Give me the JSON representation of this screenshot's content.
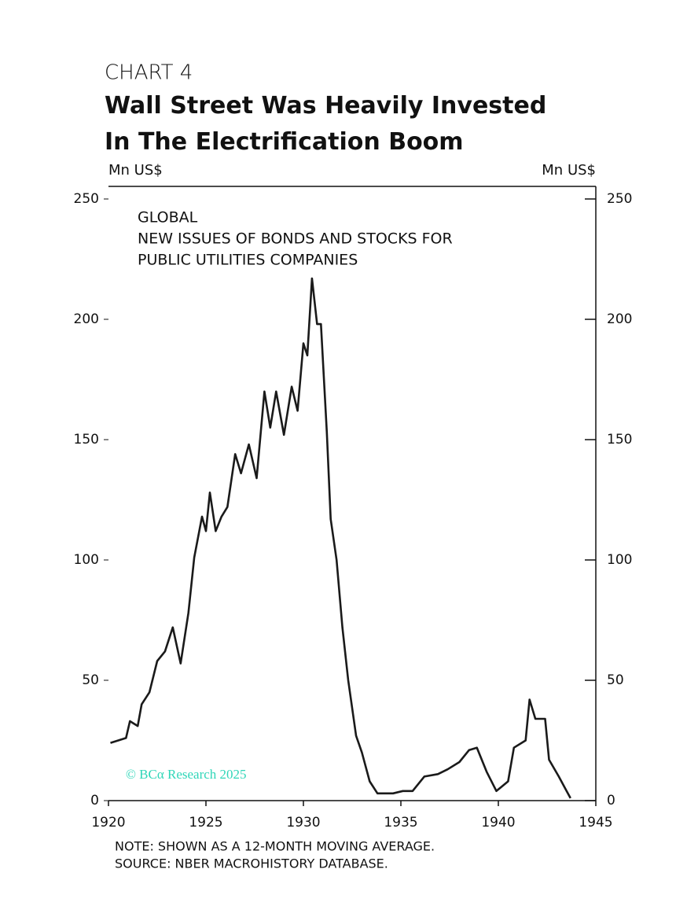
{
  "chart_data": {
    "type": "line",
    "kicker": "CHART 4",
    "title": "Wall Street Was Heavily Invested In The Electrification Boom",
    "ylabel": "Mn US$",
    "y2label": "Mn US$",
    "annotation": [
      "GLOBAL",
      "NEW ISSUES OF BONDS AND STOCKS FOR",
      "PUBLIC UTILITIES COMPANIES"
    ],
    "watermark": "© BCα Research 2025",
    "notes": [
      "NOTE: SHOWN AS A 12-MONTH MOVING AVERAGE.",
      "SOURCE: NBER MACROHISTORY DATABASE."
    ],
    "xlim": [
      1920,
      1945
    ],
    "xticks": [
      1920,
      1925,
      1930,
      1935,
      1940,
      1945
    ],
    "ylim": [
      0,
      250
    ],
    "yticks": [
      0,
      50,
      100,
      150,
      200,
      250
    ],
    "y2lim": [
      0,
      250
    ],
    "y2ticks": [
      0,
      50,
      100,
      150,
      200,
      250
    ],
    "series": [
      {
        "name": "New issues",
        "color": "#1a1a1a",
        "x": [
          1920.1,
          1920.5,
          1920.9,
          1921.1,
          1921.5,
          1921.7,
          1922.1,
          1922.5,
          1922.9,
          1923.3,
          1923.7,
          1924.1,
          1924.4,
          1924.8,
          1925.0,
          1925.2,
          1925.5,
          1925.8,
          1926.1,
          1926.5,
          1926.8,
          1927.2,
          1927.6,
          1928.0,
          1928.3,
          1928.6,
          1929.0,
          1929.4,
          1929.7,
          1930.0,
          1930.2,
          1930.44,
          1930.7,
          1930.9,
          1931.2,
          1931.4,
          1931.7,
          1932.0,
          1932.3,
          1932.7,
          1933.0,
          1933.4,
          1933.8,
          1934.6,
          1935.1,
          1935.6,
          1936.2,
          1936.9,
          1937.4,
          1938.0,
          1938.5,
          1938.9,
          1939.4,
          1939.9,
          1940.5,
          1940.8,
          1941.4,
          1941.6,
          1941.9,
          1942.4,
          1942.6,
          1943.1,
          1943.5,
          1943.7
        ],
        "values": [
          24,
          25,
          26,
          33,
          31,
          40,
          45,
          58,
          62,
          72,
          57,
          78,
          101,
          118,
          112,
          128,
          112,
          118,
          122,
          144,
          136,
          148,
          134,
          170,
          155,
          170,
          152,
          172,
          162,
          190,
          185,
          217,
          198,
          198,
          153,
          117,
          100,
          72,
          50,
          27,
          20,
          8,
          3,
          3,
          4,
          4,
          10,
          11,
          13,
          16,
          21,
          22,
          12,
          4,
          8,
          22,
          25,
          42,
          34,
          34,
          17,
          10,
          4,
          1
        ]
      }
    ]
  }
}
